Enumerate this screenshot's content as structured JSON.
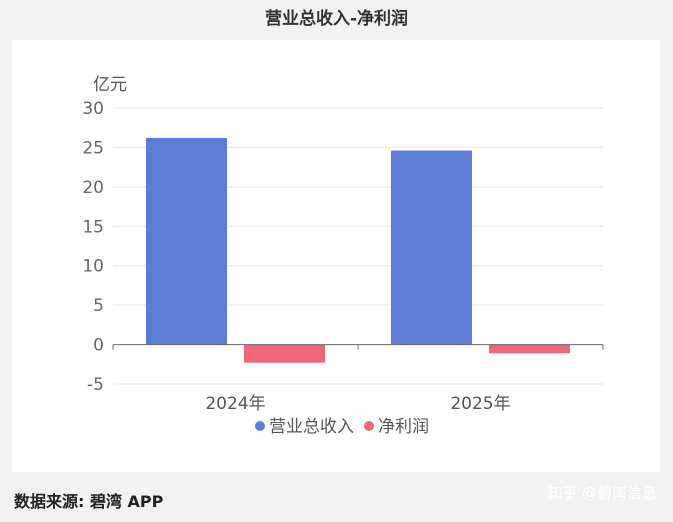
{
  "chart_data": {
    "type": "bar",
    "title": "营业总收入-净利润",
    "ylabel": "亿元",
    "xlabel": "",
    "categories": [
      "2024年",
      "2025年"
    ],
    "series": [
      {
        "name": "营业总收入",
        "values": [
          26.2,
          24.6
        ],
        "color": "#5b7bd5"
      },
      {
        "name": "净利润",
        "values": [
          -2.3,
          -1.1
        ],
        "color": "#ee6677"
      }
    ],
    "ylim": [
      -5,
      30
    ],
    "yticks": [
      "30",
      "25",
      "20",
      "15",
      "10",
      "5",
      "0",
      "-5"
    ],
    "grid": true,
    "legend_position": "bottom"
  },
  "footer": {
    "source": "数据来源: 碧湾 APP",
    "credit": "知乎 @碧湾信息"
  }
}
